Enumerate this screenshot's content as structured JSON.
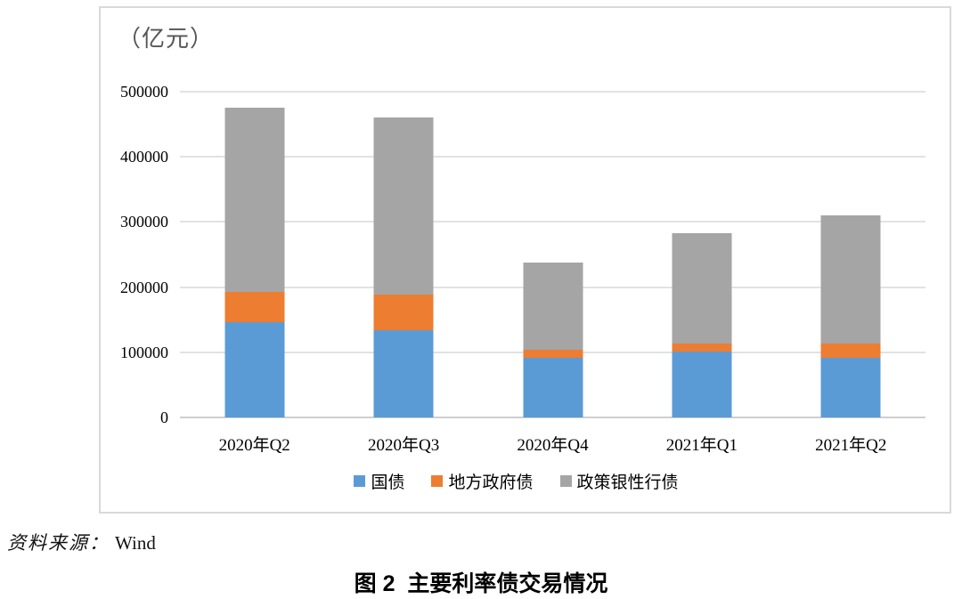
{
  "chart": {
    "unit_label": "（亿元）",
    "colors": {
      "blue": "#5B9BD5",
      "orange": "#ED7D31",
      "gray": "#A5A5A5",
      "gridline": "#E2E2E2",
      "border": "#D9D9D9"
    }
  },
  "chart_data": {
    "type": "bar",
    "stacked": true,
    "title": "图 2  主要利率债交易情况",
    "unit": "亿元",
    "categories": [
      "2020年Q2",
      "2020年Q3",
      "2020年Q4",
      "2021年Q1",
      "2021年Q2"
    ],
    "series": [
      {
        "name": "国债",
        "color": "#5B9BD5",
        "values": [
          146000,
          134000,
          92000,
          101000,
          92000
        ]
      },
      {
        "name": "地方政府债",
        "color": "#ED7D31",
        "values": [
          46000,
          54000,
          12000,
          13000,
          22000
        ]
      },
      {
        "name": "政策银性行债",
        "color": "#A5A5A5",
        "values": [
          283000,
          272000,
          134000,
          169000,
          196000
        ]
      }
    ],
    "ylim": [
      0,
      500000
    ],
    "yticks": [
      0,
      100000,
      200000,
      300000,
      400000,
      500000
    ],
    "grid": true,
    "legend_position": "bottom"
  },
  "footer": {
    "source_label": "资料来源：",
    "source_value": "Wind",
    "caption": "图 2  主要利率债交易情况"
  }
}
